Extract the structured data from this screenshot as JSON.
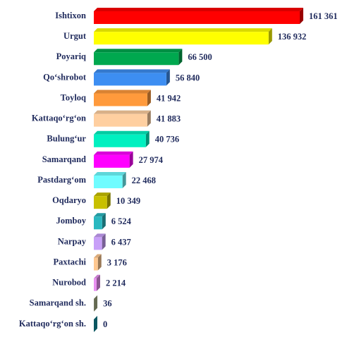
{
  "chart_data": {
    "type": "bar3d-horizontal",
    "categories": [
      "Ishtixon",
      "Urgut",
      "Poyariq",
      "Qo‘shrobot",
      "Toyloq",
      "Kattaqo‘rg‘on",
      "Bulung‘ur",
      "Samarqand",
      "Pastdarg‘om",
      "Oqdaryo",
      "Jomboy",
      "Narpay",
      "Paxtachi",
      "Nurobod",
      "Samarqand sh.",
      "Kattaqo‘rg‘on sh."
    ],
    "values": [
      161361,
      136932,
      66500,
      56840,
      41942,
      41883,
      40736,
      27974,
      22468,
      10349,
      6524,
      6437,
      3176,
      2214,
      36,
      0
    ],
    "value_labels": [
      "161 361",
      "136 932",
      "66 500",
      "56 840",
      "41 942",
      "41 883",
      "40 736",
      "27 974",
      "22 468",
      "10 349",
      "6 524",
      "6 437",
      "3 176",
      "2 214",
      "36",
      "0"
    ],
    "colors": [
      "#ff0000",
      "#ffff00",
      "#00a84f",
      "#3d8ef2",
      "#ff9a3c",
      "#ffcfa0",
      "#00f0c0",
      "#ff00ff",
      "#6ffcff",
      "#c8c000",
      "#2ab8c0",
      "#c8a0f8",
      "#ffc890",
      "#e890f0",
      "#a8b088",
      "#1090a0"
    ]
  }
}
